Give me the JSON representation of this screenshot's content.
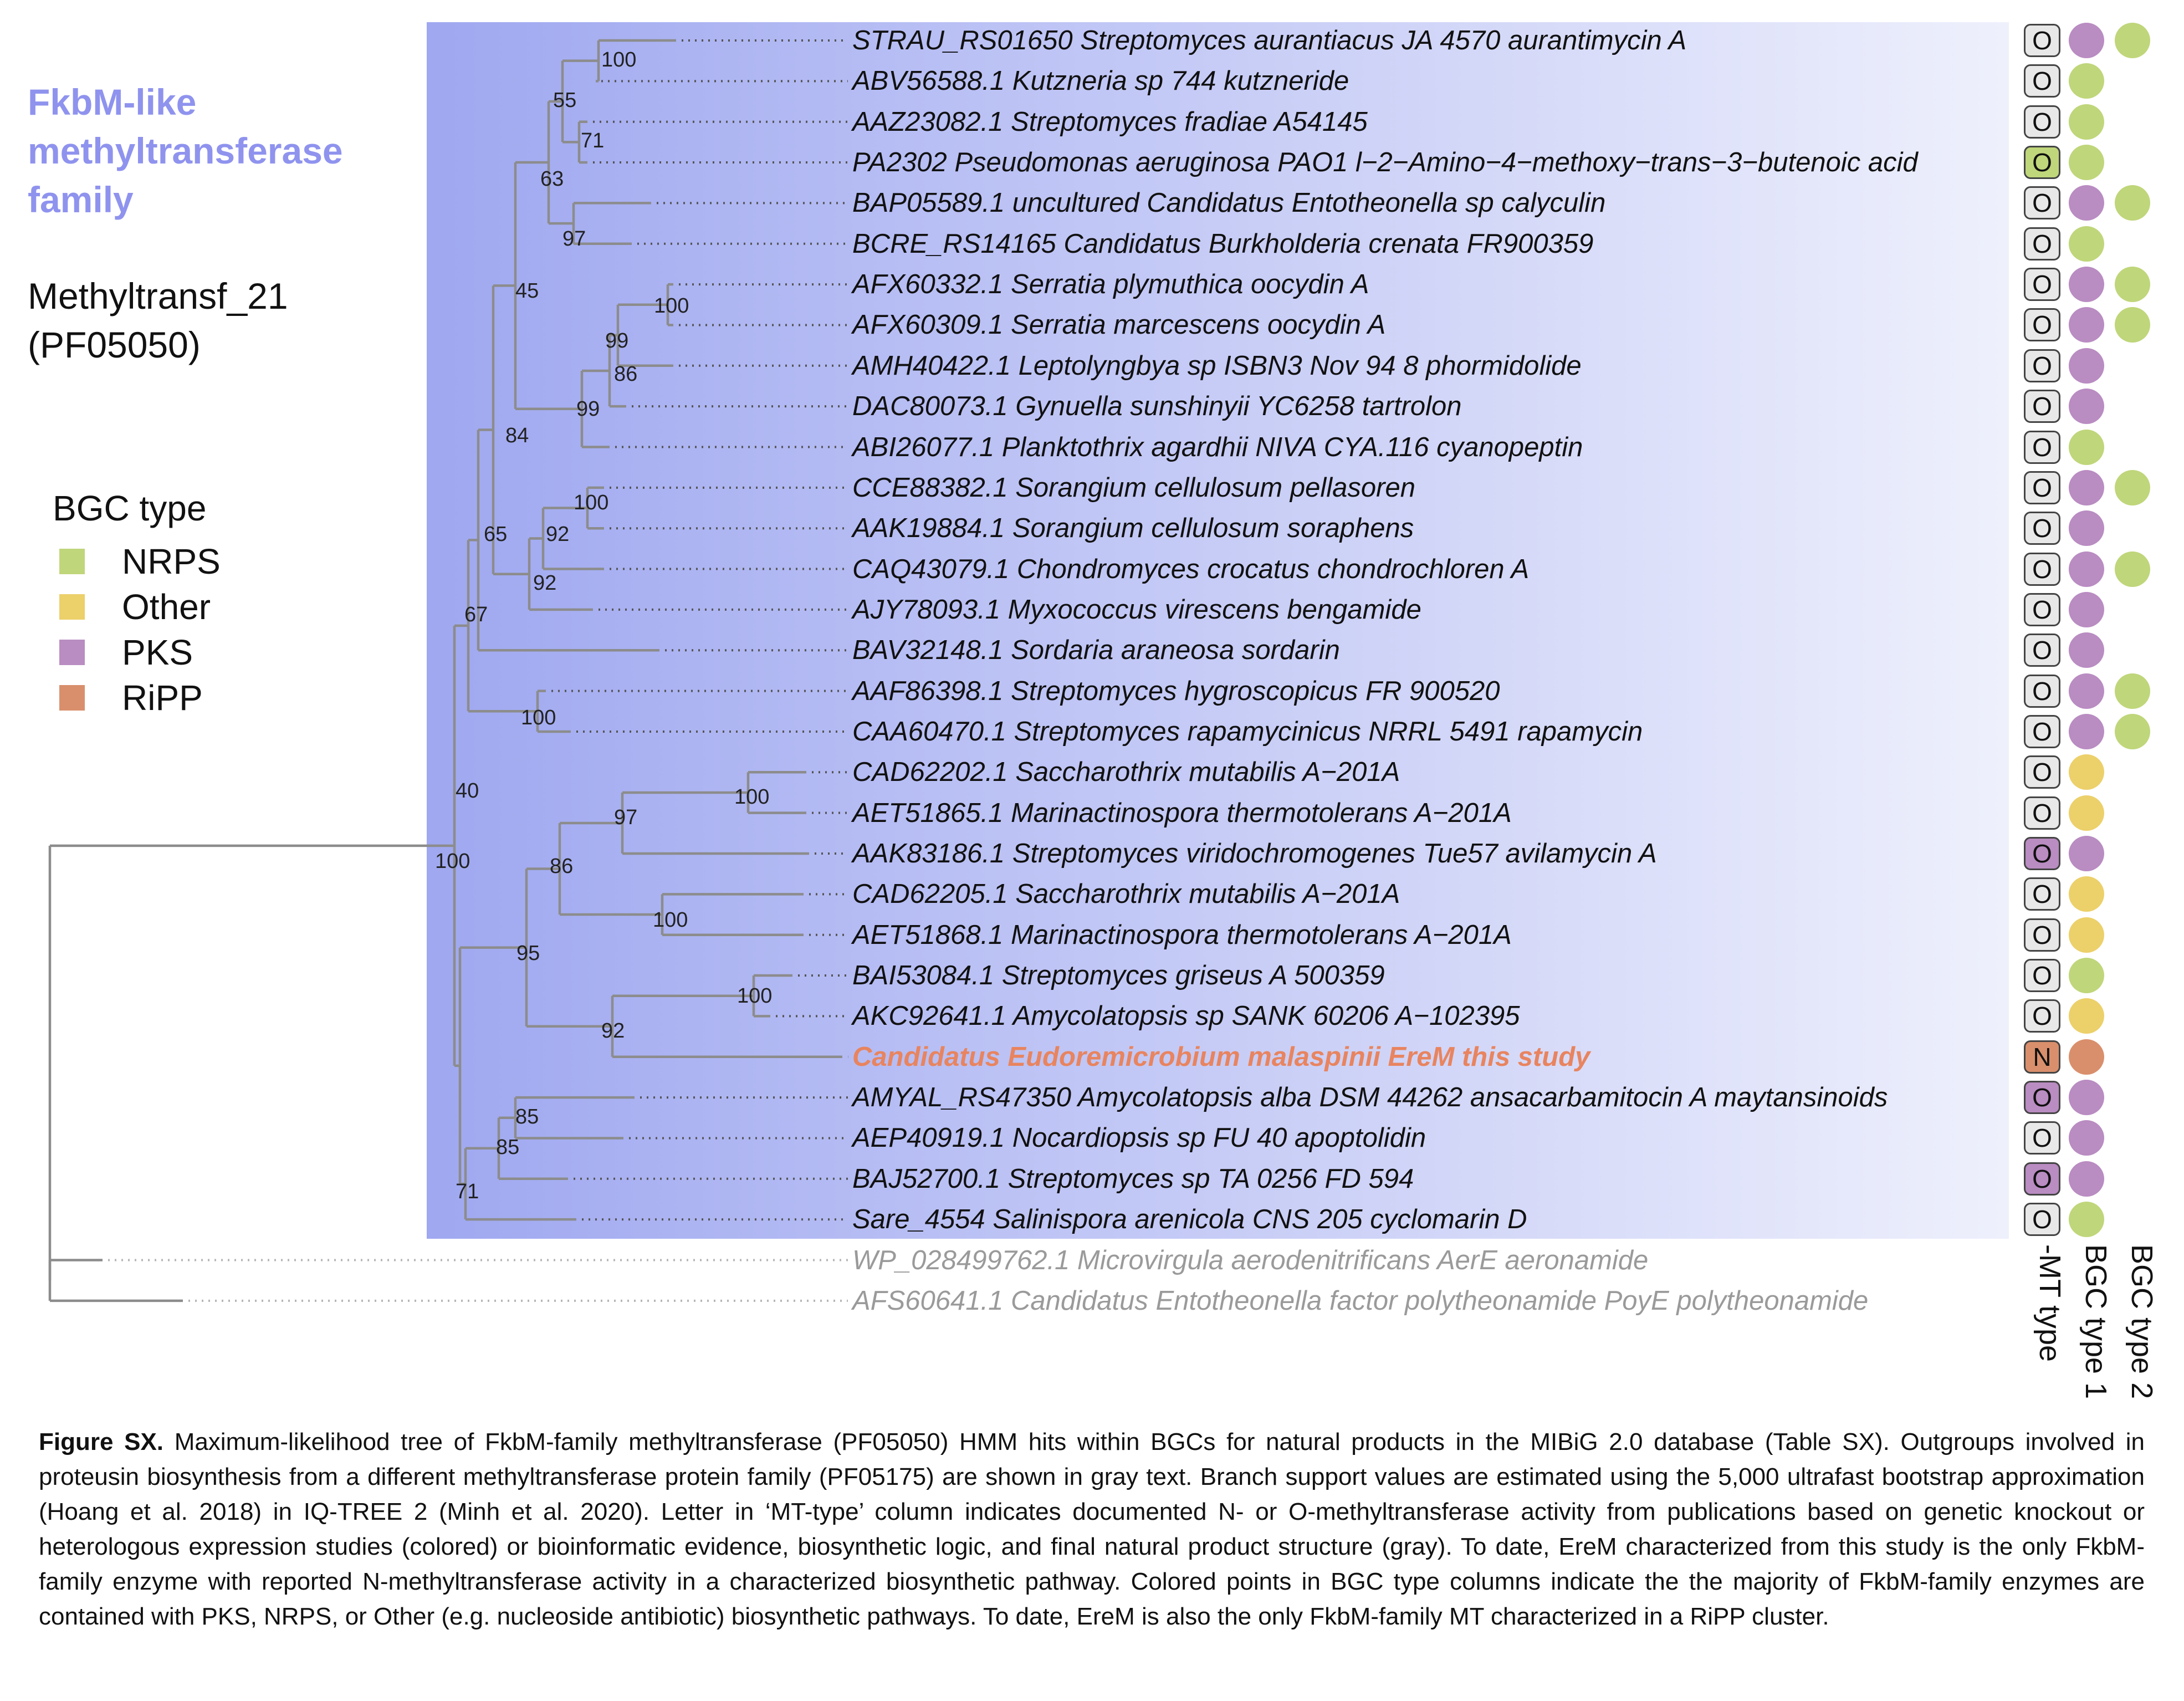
{
  "header": {
    "family_title": "FkbM-like methyltransferase family",
    "pfam_line1": "Methyltransf_21",
    "pfam_line2": "(PF05050)"
  },
  "legend": {
    "title": "BGC type",
    "items": [
      {
        "label": "NRPS",
        "color": "#bfd67a"
      },
      {
        "label": "Other",
        "color": "#ecd06a"
      },
      {
        "label": "PKS",
        "color": "#b98cc2"
      },
      {
        "label": "RiPP",
        "color": "#d98f6c"
      }
    ]
  },
  "columns": {
    "mt_type": "-MT type",
    "bgc1": "BGC type 1",
    "bgc2": "BGC type 2"
  },
  "colors": {
    "clade_bg_left": "#9fa8f0",
    "clade_bg_right": "#eef0fc",
    "branch": "#8c8c8c",
    "highlight": "#e8845f",
    "outgroup": "#9a9a9a",
    "mt_gray": "#e8e8e8",
    "mt_green": "#bfd67a",
    "mt_purple": "#b98cc2",
    "mt_red": "#d98f6c"
  },
  "tips": [
    {
      "label": "STRAU_RS01650 Streptomyces aurantiacus JA 4570 aurantimycin A",
      "mt": "O",
      "mt_color": "gray",
      "bgc1": "PKS",
      "bgc2": "NRPS"
    },
    {
      "label": "ABV56588.1 Kutzneria sp 744 kutzneride",
      "mt": "O",
      "mt_color": "gray",
      "bgc1": "NRPS",
      "bgc2": ""
    },
    {
      "label": "AAZ23082.1 Streptomyces fradiae A54145",
      "mt": "O",
      "mt_color": "gray",
      "bgc1": "NRPS",
      "bgc2": ""
    },
    {
      "label": "PA2302 Pseudomonas aeruginosa PAO1 l−2−Amino−4−methoxy−trans−3−butenoic acid",
      "mt": "O",
      "mt_color": "green",
      "bgc1": "NRPS",
      "bgc2": ""
    },
    {
      "label": "BAP05589.1 uncultured Candidatus Entotheonella sp calyculin",
      "mt": "O",
      "mt_color": "gray",
      "bgc1": "PKS",
      "bgc2": "NRPS"
    },
    {
      "label": "BCRE_RS14165 Candidatus Burkholderia crenata FR900359",
      "mt": "O",
      "mt_color": "gray",
      "bgc1": "NRPS",
      "bgc2": ""
    },
    {
      "label": "AFX60332.1 Serratia plymuthica oocydin A",
      "mt": "O",
      "mt_color": "gray",
      "bgc1": "PKS",
      "bgc2": "NRPS"
    },
    {
      "label": "AFX60309.1 Serratia marcescens oocydin A",
      "mt": "O",
      "mt_color": "gray",
      "bgc1": "PKS",
      "bgc2": "NRPS"
    },
    {
      "label": "AMH40422.1 Leptolyngbya sp ISBN3 Nov 94 8 phormidolide",
      "mt": "O",
      "mt_color": "gray",
      "bgc1": "PKS",
      "bgc2": ""
    },
    {
      "label": "DAC80073.1 Gynuella sunshinyii YC6258 tartrolon",
      "mt": "O",
      "mt_color": "gray",
      "bgc1": "PKS",
      "bgc2": ""
    },
    {
      "label": "ABI26077.1 Planktothrix agardhii NIVA CYA.116 cyanopeptin",
      "mt": "O",
      "mt_color": "gray",
      "bgc1": "NRPS",
      "bgc2": ""
    },
    {
      "label": "CCE88382.1 Sorangium cellulosum pellasoren",
      "mt": "O",
      "mt_color": "gray",
      "bgc1": "PKS",
      "bgc2": "NRPS"
    },
    {
      "label": "AAK19884.1 Sorangium cellulosum soraphens",
      "mt": "O",
      "mt_color": "gray",
      "bgc1": "PKS",
      "bgc2": ""
    },
    {
      "label": "CAQ43079.1 Chondromyces crocatus chondrochloren A",
      "mt": "O",
      "mt_color": "gray",
      "bgc1": "PKS",
      "bgc2": "NRPS"
    },
    {
      "label": "AJY78093.1 Myxococcus virescens bengamide",
      "mt": "O",
      "mt_color": "gray",
      "bgc1": "PKS",
      "bgc2": ""
    },
    {
      "label": "BAV32148.1 Sordaria araneosa sordarin",
      "mt": "O",
      "mt_color": "gray",
      "bgc1": "PKS",
      "bgc2": ""
    },
    {
      "label": "AAF86398.1 Streptomyces hygroscopicus FR 900520",
      "mt": "O",
      "mt_color": "gray",
      "bgc1": "PKS",
      "bgc2": "NRPS"
    },
    {
      "label": "CAA60470.1 Streptomyces rapamycinicus NRRL 5491 rapamycin",
      "mt": "O",
      "mt_color": "gray",
      "bgc1": "PKS",
      "bgc2": "NRPS"
    },
    {
      "label": "CAD62202.1 Saccharothrix mutabilis A−201A",
      "mt": "O",
      "mt_color": "gray",
      "bgc1": "Other",
      "bgc2": ""
    },
    {
      "label": "AET51865.1 Marinactinospora thermotolerans A−201A",
      "mt": "O",
      "mt_color": "gray",
      "bgc1": "Other",
      "bgc2": ""
    },
    {
      "label": "AAK83186.1 Streptomyces viridochromogenes Tue57 avilamycin A",
      "mt": "O",
      "mt_color": "purple",
      "bgc1": "PKS",
      "bgc2": ""
    },
    {
      "label": "CAD62205.1 Saccharothrix mutabilis A−201A",
      "mt": "O",
      "mt_color": "gray",
      "bgc1": "Other",
      "bgc2": ""
    },
    {
      "label": "AET51868.1 Marinactinospora thermotolerans A−201A",
      "mt": "O",
      "mt_color": "gray",
      "bgc1": "Other",
      "bgc2": ""
    },
    {
      "label": "BAI53084.1 Streptomyces griseus A 500359",
      "mt": "O",
      "mt_color": "gray",
      "bgc1": "NRPS",
      "bgc2": ""
    },
    {
      "label": "AKC92641.1 Amycolatopsis sp SANK 60206 A−102395",
      "mt": "O",
      "mt_color": "gray",
      "bgc1": "Other",
      "bgc2": ""
    },
    {
      "label": "Candidatus Eudoremicrobium malaspinii EreM this study",
      "mt": "N",
      "mt_color": "red",
      "bgc1": "RiPP",
      "bgc2": "",
      "highlight": true
    },
    {
      "label": "AMYAL_RS47350 Amycolatopsis alba DSM 44262 ansacarbamitocin A maytansinoids",
      "mt": "O",
      "mt_color": "purple",
      "bgc1": "PKS",
      "bgc2": ""
    },
    {
      "label": "AEP40919.1 Nocardiopsis sp FU 40 apoptolidin",
      "mt": "O",
      "mt_color": "gray",
      "bgc1": "PKS",
      "bgc2": ""
    },
    {
      "label": "BAJ52700.1 Streptomyces sp TA 0256 FD 594",
      "mt": "O",
      "mt_color": "purple",
      "bgc1": "PKS",
      "bgc2": ""
    },
    {
      "label": "Sare_4554 Salinispora arenicola CNS 205 cyclomarin D",
      "mt": "O",
      "mt_color": "gray",
      "bgc1": "NRPS",
      "bgc2": ""
    },
    {
      "label": "WP_028499762.1 Microvirgula aerodenitrificans AerE aeronamide",
      "mt": "",
      "mt_color": "",
      "bgc1": "",
      "bgc2": "",
      "outgroup": true
    },
    {
      "label": "AFS60641.1 Candidatus Entotheonella factor polytheonamide PoyE polytheonamide",
      "mt": "",
      "mt_color": "",
      "bgc1": "",
      "bgc2": "",
      "outgroup": true
    }
  ],
  "support_values": [
    "100",
    "55",
    "71",
    "63",
    "97",
    "45",
    "100",
    "86",
    "99",
    "99",
    "84",
    "100",
    "92",
    "92",
    "65",
    "67",
    "100",
    "40",
    "100",
    "97",
    "86",
    "100",
    "95",
    "100",
    "92",
    "100",
    "85",
    "85",
    "71"
  ],
  "caption": {
    "lead": "Figure SX.",
    "text": "Maximum-likelihood tree of FkbM-family methyltransferase (PF05050) HMM hits within BGCs for natural products in the MIBiG 2.0 database (Table SX). Outgroups involved in proteusin biosynthesis from a different methyltransferase protein family (PF05175) are shown in gray text. Branch support values are estimated using the 5,000 ultrafast bootstrap approximation (Hoang et al. 2018) in IQ-TREE 2 (Minh et al. 2020). Letter in ‘MT-type’ column indicates documented N- or O-methyltransferase activity from publications based on genetic knockout or heterologous expression studies (colored) or bioinformatic evidence, biosynthetic logic, and final natural product structure (gray). To date, EreM characterized from this study is the only FkbM-family enzyme with reported N-methyltransferase activity in a characterized biosynthetic pathway. Colored points in BGC type columns indicate the the majority of FkbM-family enzymes are contained with PKS, NRPS, or Other (e.g. nucleoside antibiotic) biosynthetic pathways. To date, EreM is also the only FkbM-family MT characterized in a RiPP cluster."
  }
}
